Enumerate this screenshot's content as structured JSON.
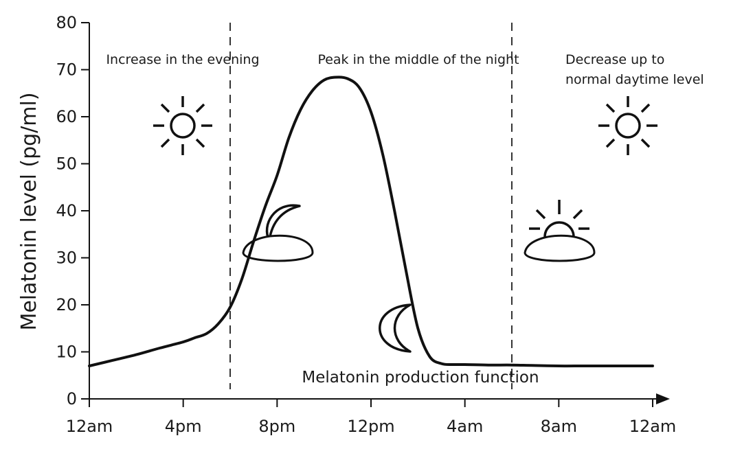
{
  "chart_data": {
    "type": "line",
    "title": "",
    "ylabel": "Melatonin level (pg/ml)",
    "xlabel": "",
    "ylim": [
      0,
      80
    ],
    "yticks": [
      0,
      10,
      20,
      30,
      40,
      50,
      60,
      70,
      80
    ],
    "x_tick_labels": [
      "12am",
      "4pm",
      "8pm",
      "12pm",
      "4am",
      "8am",
      "12am"
    ],
    "series": [
      {
        "x": [
          0,
          1,
          2,
          3,
          4,
          4.5,
          5,
          5.5,
          6,
          6.5,
          7,
          7.5,
          8,
          8.5,
          9,
          9.5,
          10,
          10.5,
          11,
          11.5,
          12,
          12.5,
          13,
          13.5,
          14,
          14.5,
          15,
          15.5,
          16,
          17,
          18,
          19,
          20,
          21,
          22,
          23,
          24
        ],
        "y": [
          7,
          8.2,
          9.4,
          10.8,
          12.1,
          13,
          13.9,
          16,
          19.5,
          25.5,
          33.5,
          41,
          47.5,
          55.5,
          61.5,
          65.5,
          67.8,
          68.4,
          68.1,
          66.2,
          61,
          52,
          40,
          27,
          15,
          9,
          7.5,
          7.3,
          7.3,
          7.2,
          7.2,
          7.1,
          7.0,
          7.0,
          7.0,
          7.0,
          7.0
        ]
      }
    ],
    "dividers_at_x": [
      6,
      18
    ],
    "annotations": {
      "evening": "Increase in the evening",
      "night": "Peak in the middle of the night",
      "morning_line1": "Decrease up to",
      "morning_line2": "normal daytime level",
      "caption": "Melatonin production function"
    },
    "icons": [
      "sun-icon",
      "moon-over-cloud-icon",
      "crescent-moon-icon",
      "sunrise-over-cloud-icon",
      "sun-icon"
    ],
    "grid": false
  }
}
